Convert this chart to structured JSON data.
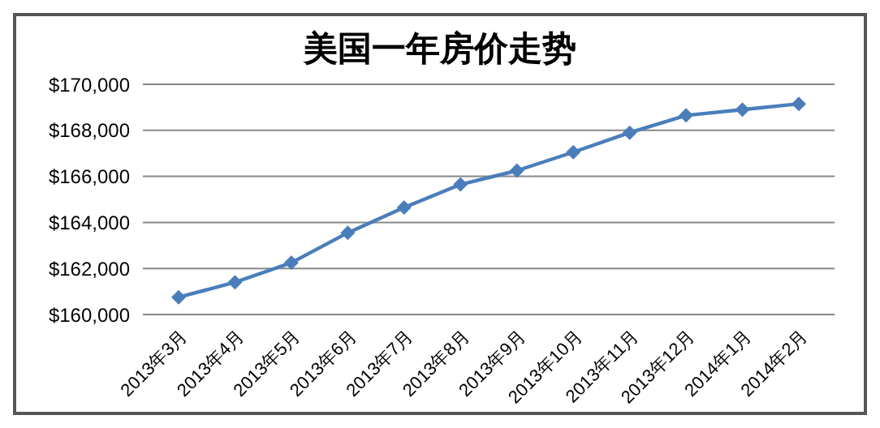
{
  "chart_data": {
    "type": "line",
    "title": "美国一年房价走势",
    "categories": [
      "2013年3月",
      "2013年4月",
      "2013年5月",
      "2013年6月",
      "2013年7月",
      "2013年8月",
      "2013年9月",
      "2013年10月",
      "2013年11月",
      "2013年12月",
      "2014年1月",
      "2014年2月"
    ],
    "series": [
      {
        "color": "#4a7ebb",
        "values": [
          160750,
          161400,
          162250,
          163550,
          164650,
          165650,
          166250,
          167050,
          167900,
          168650,
          168900,
          169150
        ]
      }
    ],
    "ylim": [
      160000,
      170000
    ],
    "yticks": [
      {
        "value": 160000,
        "label": "$160,000"
      },
      {
        "value": 162000,
        "label": "$162,000"
      },
      {
        "value": 164000,
        "label": "$164,000"
      },
      {
        "value": 166000,
        "label": "$166,000"
      },
      {
        "value": 168000,
        "label": "$168,000"
      },
      {
        "value": 170000,
        "label": "$170,000"
      }
    ],
    "grid": "y",
    "legend": false,
    "marker": "diamond",
    "line_style": "solid"
  }
}
